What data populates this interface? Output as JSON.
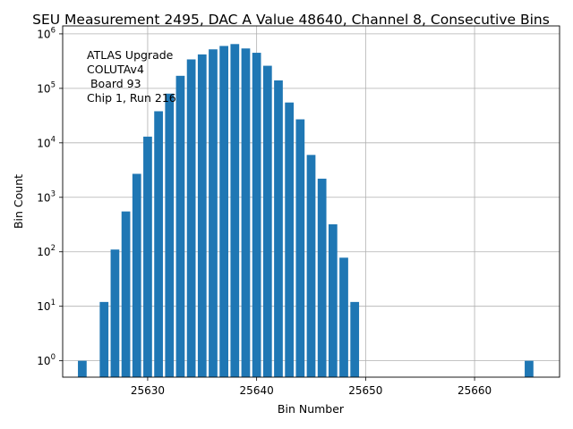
{
  "chart_data": {
    "type": "bar",
    "title": "SEU Measurement 2495, DAC A Value 48640, Channel 8, Consecutive Bins",
    "xlabel": "Bin Number",
    "ylabel": "Bin Count",
    "yscale": "log",
    "xlim": [
      25622.2,
      25667.8
    ],
    "ylim": [
      0.5,
      1400000
    ],
    "grid": true,
    "bar_color": "#1f77b4",
    "x_ticks": [
      {
        "value": 25630,
        "label": "25630"
      },
      {
        "value": 25640,
        "label": "25640"
      },
      {
        "value": 25650,
        "label": "25650"
      },
      {
        "value": 25660,
        "label": "25660"
      }
    ],
    "y_ticks": [
      {
        "value": 1,
        "base": "10",
        "exp": "0"
      },
      {
        "value": 10,
        "base": "10",
        "exp": "1"
      },
      {
        "value": 100,
        "base": "10",
        "exp": "2"
      },
      {
        "value": 1000,
        "base": "10",
        "exp": "3"
      },
      {
        "value": 10000,
        "base": "10",
        "exp": "4"
      },
      {
        "value": 100000,
        "base": "10",
        "exp": "5"
      },
      {
        "value": 1000000,
        "base": "10",
        "exp": "6"
      }
    ],
    "x": [
      25624,
      25626,
      25627,
      25628,
      25629,
      25630,
      25631,
      25632,
      25633,
      25634,
      25635,
      25636,
      25637,
      25638,
      25639,
      25640,
      25641,
      25642,
      25643,
      25644,
      25645,
      25646,
      25647,
      25648,
      25649,
      25665
    ],
    "values": [
      1,
      12,
      110,
      550,
      2700,
      13000,
      38000,
      80000,
      170000,
      340000,
      420000,
      520000,
      600000,
      650000,
      540000,
      450000,
      260000,
      140000,
      55000,
      27000,
      6000,
      2200,
      320,
      78,
      12,
      1
    ],
    "annotation": [
      "ATLAS Upgrade",
      "COLUTAv4",
      " Board 93",
      "Chip 1, Run 216"
    ]
  }
}
